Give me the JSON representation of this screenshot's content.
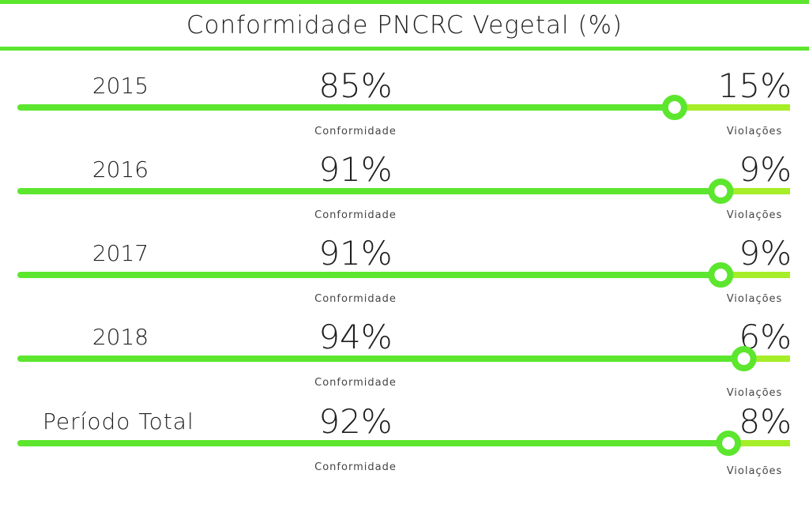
{
  "colors": {
    "conformity": "#5ce62e",
    "violations": "#a6ee27",
    "knob_center": "#ffffff"
  },
  "chart_data": {
    "type": "bar",
    "title": "Conformidade PNCRC Vegetal (%)",
    "categories": [
      "2015",
      "2016",
      "2017",
      "2018",
      "Período Total"
    ],
    "series": [
      {
        "name": "Conformidade",
        "values": [
          85,
          91,
          91,
          94,
          92
        ],
        "labels": [
          "85%",
          "91%",
          "91%",
          "94%",
          "92%"
        ]
      },
      {
        "name": "Violações",
        "values": [
          15,
          9,
          9,
          6,
          8
        ],
        "labels": [
          "15%",
          "9%",
          "9%",
          "6%",
          "8%"
        ]
      }
    ],
    "xlim": [
      0,
      100
    ]
  }
}
